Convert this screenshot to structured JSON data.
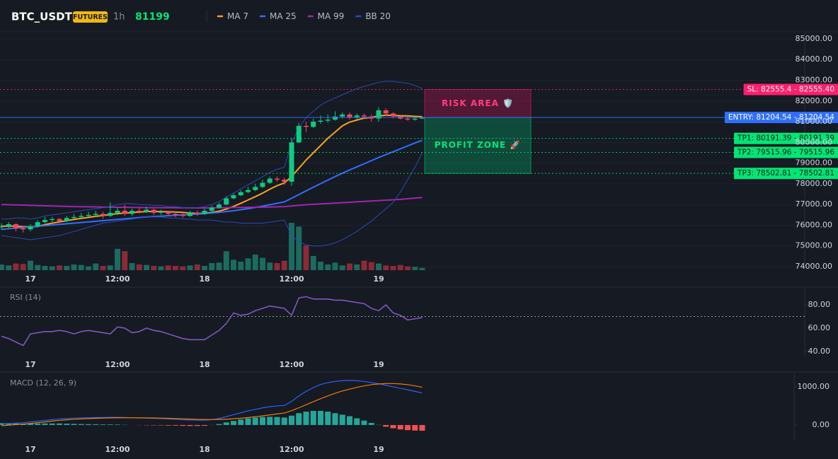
{
  "header": {
    "symbol": "BTC_USDT",
    "badge": "FUTURES",
    "interval": "1h",
    "price": 81199
  },
  "chart_data": [
    {
      "type": "candlestick",
      "categories": [
        null,
        null,
        null,
        null,
        "17",
        null,
        null,
        null,
        null,
        null,
        null,
        null,
        null,
        null,
        null,
        null,
        "12:00",
        null,
        null,
        null,
        null,
        null,
        null,
        null,
        null,
        null,
        null,
        null,
        "18",
        null,
        null,
        null,
        null,
        null,
        null,
        null,
        null,
        null,
        null,
        null,
        "12:00",
        null,
        null,
        null,
        null,
        null,
        null,
        null,
        null,
        null,
        null,
        null,
        "19",
        null,
        null,
        null,
        null,
        null,
        null
      ],
      "open": [
        75900,
        75950,
        76050,
        75850,
        75800,
        75950,
        76150,
        76250,
        76300,
        76200,
        76350,
        76400,
        76450,
        76500,
        76550,
        76450,
        76600,
        76700,
        76550,
        76700,
        76650,
        76750,
        76600,
        76650,
        76550,
        76500,
        76450,
        76600,
        76550,
        76700,
        76850,
        77000,
        77300,
        77450,
        77600,
        77700,
        77850,
        78050,
        78250,
        78200,
        78100,
        80000,
        80800,
        80750,
        81000,
        81050,
        81100,
        81250,
        81350,
        81200,
        81300,
        81250,
        81150,
        81550,
        81400,
        81250,
        81150,
        81100,
        81150
      ],
      "high": [
        76100,
        76150,
        76100,
        75950,
        76050,
        76250,
        76400,
        76400,
        76350,
        76450,
        76550,
        76600,
        76650,
        76700,
        76650,
        77100,
        76850,
        77000,
        76800,
        76850,
        76900,
        76800,
        76750,
        76700,
        76650,
        76600,
        76700,
        76700,
        76800,
        76950,
        77100,
        77400,
        77550,
        77700,
        77850,
        78000,
        78200,
        78350,
        78350,
        78300,
        80200,
        80950,
        81000,
        81150,
        81300,
        81350,
        81500,
        81450,
        81450,
        81400,
        81400,
        81350,
        81700,
        81650,
        81450,
        81300,
        81250,
        81250,
        81250
      ],
      "low": [
        75800,
        75850,
        75700,
        75650,
        75700,
        75900,
        76100,
        76150,
        76100,
        76150,
        76300,
        76350,
        76400,
        76400,
        76300,
        76400,
        76500,
        76450,
        76450,
        76550,
        76600,
        76500,
        76500,
        76450,
        76400,
        76350,
        76400,
        76450,
        76500,
        76650,
        76800,
        76950,
        77250,
        77400,
        77550,
        77650,
        77800,
        78000,
        78100,
        77950,
        77900,
        79950,
        80500,
        80700,
        80900,
        80950,
        81050,
        81150,
        81100,
        81100,
        81150,
        81000,
        81000,
        81300,
        81150,
        81100,
        81050,
        81050,
        81150
      ],
      "close": [
        75950,
        76050,
        75850,
        75800,
        75950,
        76150,
        76250,
        76300,
        76200,
        76350,
        76400,
        76450,
        76500,
        76550,
        76450,
        76600,
        76700,
        76550,
        76700,
        76650,
        76750,
        76600,
        76650,
        76550,
        76500,
        76450,
        76600,
        76550,
        76700,
        76850,
        77000,
        77300,
        77450,
        77600,
        77700,
        77850,
        78050,
        78250,
        78200,
        78100,
        80000,
        80800,
        80750,
        81000,
        81050,
        81100,
        81250,
        81350,
        81200,
        81300,
        81250,
        81150,
        81550,
        81400,
        81250,
        81150,
        81100,
        81150,
        81200
      ],
      "up_color": "#0ecb81",
      "down_color": "#f6465d",
      "volume": {
        "values": [
          12,
          10,
          14,
          13,
          20,
          11,
          9,
          8,
          10,
          9,
          12,
          11,
          8,
          14,
          9,
          10,
          45,
          40,
          15,
          12,
          11,
          9,
          8,
          10,
          9,
          8,
          10,
          12,
          9,
          15,
          16,
          40,
          22,
          18,
          25,
          33,
          26,
          16,
          15,
          20,
          100,
          92,
          52,
          30,
          18,
          12,
          16,
          10,
          14,
          12,
          20,
          17,
          14,
          10,
          9,
          11,
          8,
          7,
          5
        ],
        "up_color": "#1b6b5f",
        "down_color": "#8c2a38"
      },
      "series": [
        {
          "name": "MA 7",
          "color": "#f7a21b",
          "values": [
            75950,
            75960,
            75950,
            75930,
            75920,
            75940,
            76030,
            76100,
            76160,
            76220,
            76280,
            76330,
            76380,
            76430,
            76470,
            76520,
            76560,
            76590,
            76610,
            76640,
            76660,
            76660,
            76660,
            76650,
            76640,
            76620,
            76590,
            76570,
            76580,
            76620,
            76680,
            76780,
            76910,
            77060,
            77220,
            77380,
            77550,
            77740,
            77910,
            78040,
            78350,
            78750,
            79150,
            79500,
            79850,
            80200,
            80500,
            80800,
            80980,
            81080,
            81170,
            81210,
            81270,
            81320,
            81300,
            81290,
            81280,
            81260,
            81240
          ]
        },
        {
          "name": "MA 25",
          "color": "#2f6fff",
          "values": [
            75800,
            75830,
            75860,
            75890,
            75920,
            75950,
            75980,
            76010,
            76040,
            76070,
            76100,
            76130,
            76160,
            76190,
            76220,
            76250,
            76280,
            76310,
            76340,
            76370,
            76400,
            76420,
            76440,
            76460,
            76480,
            76500,
            76520,
            76540,
            76560,
            76590,
            76620,
            76660,
            76700,
            76750,
            76800,
            76860,
            76920,
            76990,
            77060,
            77130,
            77300,
            77480,
            77660,
            77840,
            78010,
            78180,
            78350,
            78510,
            78670,
            78820,
            78970,
            79120,
            79270,
            79410,
            79550,
            79690,
            79830,
            79970,
            80100
          ]
        },
        {
          "name": "MA 99",
          "color": "#9c27b0",
          "values": [
            77000,
            76990,
            76980,
            76970,
            76960,
            76950,
            76940,
            76930,
            76920,
            76910,
            76900,
            76895,
            76890,
            76885,
            76880,
            76875,
            76870,
            76865,
            76860,
            76855,
            76850,
            76848,
            76846,
            76844,
            76842,
            76840,
            76838,
            76836,
            76835,
            76840,
            76845,
            76850,
            76855,
            76860,
            76865,
            76870,
            76875,
            76880,
            76890,
            76900,
            76930,
            76960,
            76990,
            77010,
            77030,
            77050,
            77070,
            77090,
            77110,
            77130,
            77150,
            77170,
            77190,
            77210,
            77230,
            77250,
            77280,
            77310,
            77340
          ]
        },
        {
          "name": "BB 20",
          "color": "#2a4ab8",
          "upper": [
            76300,
            76300,
            76350,
            76350,
            76300,
            76350,
            76450,
            76500,
            76550,
            76600,
            76650,
            76700,
            76750,
            76800,
            76850,
            76900,
            77000,
            77050,
            77050,
            77000,
            77000,
            76950,
            76950,
            76900,
            76900,
            76850,
            76850,
            76850,
            76900,
            77000,
            77150,
            77350,
            77550,
            77750,
            77950,
            78150,
            78350,
            78550,
            78700,
            78800,
            80000,
            80700,
            81200,
            81500,
            81800,
            82000,
            82150,
            82300,
            82450,
            82600,
            82700,
            82800,
            82900,
            82950,
            82950,
            82900,
            82850,
            82750,
            82600
          ],
          "lower": [
            75500,
            75450,
            75400,
            75350,
            75300,
            75350,
            75400,
            75450,
            75500,
            75600,
            75700,
            75800,
            75900,
            76000,
            76100,
            76150,
            76200,
            76250,
            76300,
            76350,
            76400,
            76400,
            76400,
            76350,
            76350,
            76300,
            76300,
            76250,
            76250,
            76250,
            76200,
            76150,
            76150,
            76100,
            76100,
            76100,
            76100,
            76150,
            76200,
            76250,
            75500,
            75200,
            75050,
            75000,
            75000,
            75050,
            75150,
            75300,
            75500,
            75700,
            75950,
            76200,
            76500,
            76800,
            77100,
            77600,
            78200,
            78800,
            79500
          ]
        }
      ],
      "levels": [
        {
          "label": "SL: 82555.4 - 82555.40",
          "value": 82555.4,
          "color": "#ff1f6d",
          "text_color": "#ffffff",
          "dashed": true
        },
        {
          "label": "ENTRY: 81204.54 - 81204.54",
          "value": 81204.54,
          "color": "#2f6fff",
          "text_color": "#ffffff",
          "dashed": false
        },
        {
          "label": "TP1: 80191.39 - 80191.39",
          "value": 80191.39,
          "color": "#00e676",
          "text_color": "#0b1a12",
          "dashed": true
        },
        {
          "label": "TP2: 79515.96 - 79515.96",
          "value": 79515.96,
          "color": "#00e676",
          "text_color": "#0b1a12",
          "dashed": true
        },
        {
          "label": "TP3: 78502.81 - 78502.81",
          "value": 78502.81,
          "color": "#00e676",
          "text_color": "#0b1a12",
          "dashed": true
        }
      ],
      "zones": [
        {
          "label": "RISK AREA 🛡️",
          "color": "#c2185b",
          "text_color": "#ff3d7f"
        },
        {
          "label": "PROFIT ZONE 🚀",
          "color": "#00a86b",
          "text_color": "#00e676"
        }
      ],
      "ylim": [
        73830,
        85340
      ],
      "yticks": [
        {
          "value": 74000,
          "label": "74000.00"
        },
        {
          "value": 75000,
          "label": "75000.00"
        },
        {
          "value": 76000,
          "label": "76000.00"
        },
        {
          "value": 77000,
          "label": "77000.00"
        },
        {
          "value": 78000,
          "label": "78000.00"
        },
        {
          "value": 79000,
          "label": "79000.00"
        },
        {
          "value": 80000,
          "label": "80000.00"
        },
        {
          "value": 81000,
          "label": "81000.00"
        },
        {
          "value": 82000,
          "label": "82000.00"
        },
        {
          "value": 83000,
          "label": "83000.00"
        },
        {
          "value": 84000,
          "label": "84000.00"
        },
        {
          "value": 85000,
          "label": "85000.00"
        }
      ],
      "grid": true
    },
    {
      "type": "line",
      "title": "RSI (14)",
      "color": "#7e57c2",
      "values": [
        53,
        51,
        48,
        45,
        55,
        56,
        57,
        57,
        58,
        57,
        55,
        57,
        58,
        57,
        56,
        55,
        61,
        60,
        56,
        57,
        60,
        58,
        57,
        55,
        53,
        51,
        50,
        50,
        50,
        54,
        58,
        64,
        73,
        71,
        72,
        75,
        77,
        79,
        78,
        77,
        71,
        86,
        87,
        85,
        85,
        85,
        84,
        84,
        83,
        82,
        81,
        77,
        75,
        80,
        73,
        71,
        67,
        68,
        69
      ],
      "hline": 70,
      "ylim": [
        35,
        94
      ],
      "yticks": [
        {
          "value": 40,
          "label": "40.00"
        },
        {
          "value": 60,
          "label": "60.00"
        },
        {
          "value": 80,
          "label": "80.00"
        }
      ],
      "grid": false
    },
    {
      "type": "macd",
      "title": "MACD (12, 26, 9)",
      "series": [
        {
          "color": "#2962ff",
          "values": [
            30,
            40,
            50,
            60,
            80,
            100,
            120,
            140,
            160,
            170,
            180,
            185,
            190,
            195,
            195,
            200,
            200,
            195,
            190,
            185,
            180,
            175,
            170,
            160,
            150,
            140,
            130,
            125,
            125,
            140,
            170,
            220,
            270,
            320,
            370,
            410,
            450,
            480,
            500,
            510,
            620,
            760,
            880,
            980,
            1060,
            1110,
            1140,
            1160,
            1170,
            1160,
            1140,
            1110,
            1080,
            1040,
            1000,
            960,
            920,
            880,
            840
          ]
        },
        {
          "color": "#f57c00",
          "values": [
            -20,
            -5,
            10,
            25,
            40,
            60,
            80,
            100,
            120,
            135,
            150,
            160,
            168,
            175,
            180,
            185,
            188,
            190,
            190,
            189,
            187,
            184,
            180,
            175,
            168,
            162,
            156,
            150,
            146,
            143,
            145,
            152,
            163,
            177,
            195,
            216,
            240,
            265,
            290,
            315,
            375,
            450,
            530,
            610,
            690,
            760,
            830,
            890,
            940,
            985,
            1025,
            1055,
            1075,
            1085,
            1085,
            1075,
            1055,
            1025,
            990
          ]
        }
      ],
      "histogram": {
        "values": [
          50,
          45,
          40,
          35,
          40,
          40,
          40,
          40,
          40,
          35,
          30,
          25,
          22,
          20,
          15,
          15,
          12,
          5,
          0,
          -4,
          -7,
          -9,
          -10,
          -15,
          -18,
          -22,
          -26,
          -25,
          -21,
          -3,
          25,
          68,
          107,
          143,
          175,
          194,
          210,
          215,
          210,
          195,
          245,
          310,
          350,
          370,
          370,
          350,
          310,
          270,
          230,
          175,
          115,
          55,
          5,
          -45,
          -85,
          -115,
          -135,
          -145,
          -150
        ],
        "up_color": "#26a69a",
        "down_color": "#ef5350"
      },
      "ylim": [
        -390,
        1350
      ],
      "yticks": [
        {
          "value": 0,
          "label": "0.00"
        },
        {
          "value": 1000,
          "label": "1000.00"
        }
      ],
      "grid": false
    }
  ]
}
